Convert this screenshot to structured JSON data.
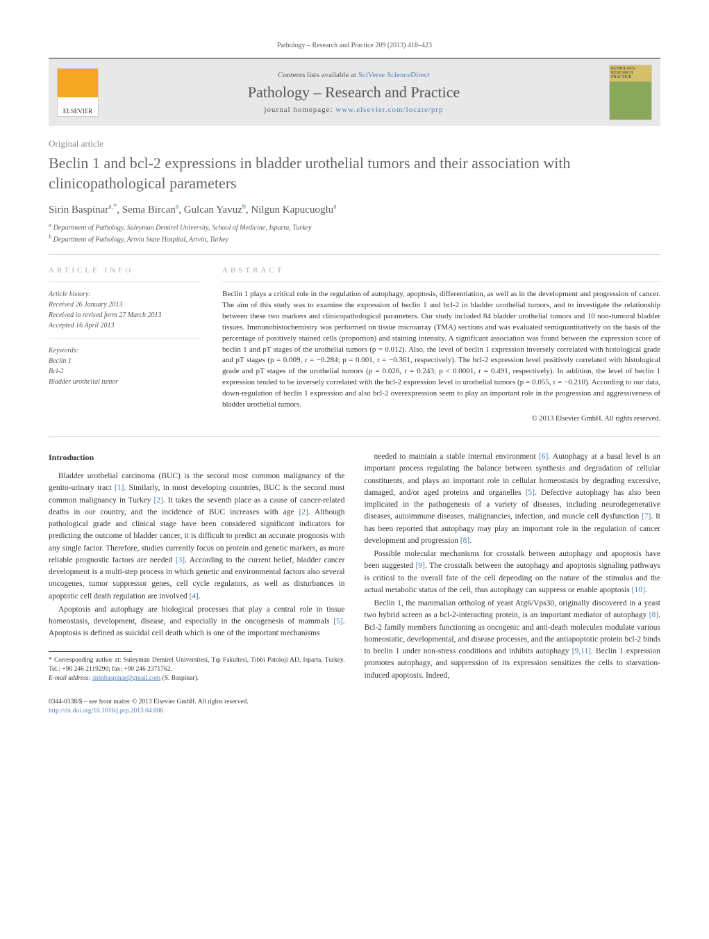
{
  "page_header": "Pathology – Research and Practice 209 (2013) 418–423",
  "contents_prefix": "Contents lists available at ",
  "contents_link": "SciVerse ScienceDirect",
  "journal_name": "Pathology – Research and Practice",
  "homepage_prefix": "journal homepage: ",
  "homepage_url": "www.elsevier.com/locate/prp",
  "publisher_logo_text": "ELSEVIER",
  "journal_cover_text": "PATHOLOGY RESEARCH PRACTICE",
  "article_type": "Original article",
  "title": "Beclin 1 and bcl-2 expressions in bladder urothelial tumors and their association with clinicopathological parameters",
  "authors": [
    {
      "name": "Sirin Baspinar",
      "aff": "a,",
      "corr": "*"
    },
    {
      "name": "Sema Bircan",
      "aff": "a",
      "corr": ""
    },
    {
      "name": "Gulcan Yavuz",
      "aff": "b",
      "corr": ""
    },
    {
      "name": "Nilgun Kapucuoglu",
      "aff": "a",
      "corr": ""
    }
  ],
  "affiliations": [
    {
      "sup": "a",
      "text": "Department of Pathology, Suleyman Demirel University, School of Medicine, Isparta, Turkey"
    },
    {
      "sup": "b",
      "text": "Department of Pathology, Artvin State Hospital, Artvin, Turkey"
    }
  ],
  "article_info_header": "article info",
  "history_label": "Article history:",
  "history": [
    "Received 26 January 2013",
    "Received in revised form 27 March 2013",
    "Accepted 16 April 2013"
  ],
  "keywords_label": "Keywords:",
  "keywords": [
    "Beclin 1",
    "Bcl-2",
    "Bladder urothelial tumor"
  ],
  "abstract_header": "abstract",
  "abstract": "Beclin 1 plays a critical role in the regulation of autophagy, apoptosis, differentiation, as well as in the development and progression of cancer. The aim of this study was to examine the expression of beclin 1 and bcl-2 in bladder urothelial tumors, and to investigate the relationship between these two markers and clinicopathological parameters. Our study included 84 bladder urothelial tumors and 10 non-tumoral bladder tissues. Immunohistochemistry was performed on tissue microarray (TMA) sections and was evaluated semiquantitatively on the basis of the percentage of positively stained cells (proportion) and staining intensity. A significant association was found between the expression score of beclin 1 and pT stages of the urothelial tumors (p = 0.012). Also, the level of beclin 1 expression inversely correlated with histological grade and pT stages (p = 0.009, r = −0.284; p = 0.001, r = −0.361, respectively). The bcl-2 expression level positively correlated with histological grade and pT stages of the urothelial tumors (p = 0.026, r = 0.243; p < 0.0001, r = 0.491, respectively). In addition, the level of beclin 1 expression tended to be inversely correlated with the bcl-2 expression level in urothelial tumors (p = 0.055, r = −0.210). According to our data, down-regulation of beclin 1 expression and also bcl-2 overexpression seem to play an important role in the progression and aggressiveness of bladder urothelial tumors.",
  "copyright": "© 2013 Elsevier GmbH. All rights reserved.",
  "intro_title": "Introduction",
  "body_left": [
    "Bladder urothelial carcinoma (BUC) is the second most common malignancy of the genito-urinary tract [1]. Similarly, in most developing countries, BUC is the second most common malignancy in Turkey [2]. It takes the seventh place as a cause of cancer-related deaths in our country, and the incidence of BUC increases with age [2]. Although pathological grade and clinical stage have been considered significant indicators for predicting the outcome of bladder cancer, it is difficult to predict an accurate prognosis with any single factor. Therefore, studies currently focus on protein and genetic markers, as more reliable prognostic factors are needed [3]. According to the current belief, bladder cancer development is a multi-step process in which genetic and environmental factors also several oncogenes, tumor suppressor genes, cell cycle regulators, as well as disturbances in apoptotic cell death regulation are involved [4].",
    "Apoptosis and autophagy are biological processes that play a central role in tissue homeostasis, development, disease, and especially in the oncogenesis of mammals [5]. Apoptosis is defined as suicidal cell death which is one of the important mechanisms"
  ],
  "body_right": [
    "needed to maintain a stable internal environment [6]. Autophagy at a basal level is an important process regulating the balance between synthesis and degradation of cellular constituents, and plays an important role in cellular homeostasis by degrading excessive, damaged, and/or aged proteins and organelles [5]. Defective autophagy has also been implicated in the pathogenesis of a variety of diseases, including neurodegenerative diseases, autoimmune diseases, malignancies, infection, and muscle cell dysfunction [7]. It has been reported that autophagy may play an important role in the regulation of cancer development and progression [8].",
    "Possible molecular mechanisms for crosstalk between autophagy and apoptosis have been suggested [9]. The crosstalk between the autophagy and apoptosis signaling pathways is critical to the overall fate of the cell depending on the nature of the stimulus and the actual metabolic status of the cell, thus autophagy can suppress or enable apoptosis [10].",
    "Beclin 1, the mammalian ortholog of yeast Atg6/Vps30, originally discovered in a yeast two hybrid screen as a bcl-2-interacting protein, is an important mediator of autophagy [8]. Bcl-2 family members functioning as oncogenic and anti-death molecules modulate various homeostatic, developmental, and disease processes, and the antiapoptotic protein bcl-2 binds to beclin 1 under non-stress conditions and inhibits autophagy [9,11]. Beclin 1 expression promotes autophagy, and suppression of its expression sensitizes the cells to starvation-induced apoptosis. Indeed,"
  ],
  "corr_footnote": {
    "marker": "*",
    "text": "Corresponding author at: Suleyman Demirel Universitesi, Tıp Fakultesi, Tıbbi Patoloji AD, Isparta, Turkey. Tel.: +90 246 2119290; fax: +90 246 2371762.",
    "email_label": "E-mail address: ",
    "email": "sirinbaspinar@gmail.com",
    "email_suffix": " (S. Baspinar)."
  },
  "bottom_meta": {
    "issn_line": "0344-0338/$ – see front matter © 2013 Elsevier GmbH. All rights reserved.",
    "doi": "http://dx.doi.org/10.1016/j.prp.2013.04.006"
  },
  "colors": {
    "link": "#4a7db5",
    "header_bg": "#e8e8e8",
    "muted": "#888",
    "text": "#333"
  }
}
